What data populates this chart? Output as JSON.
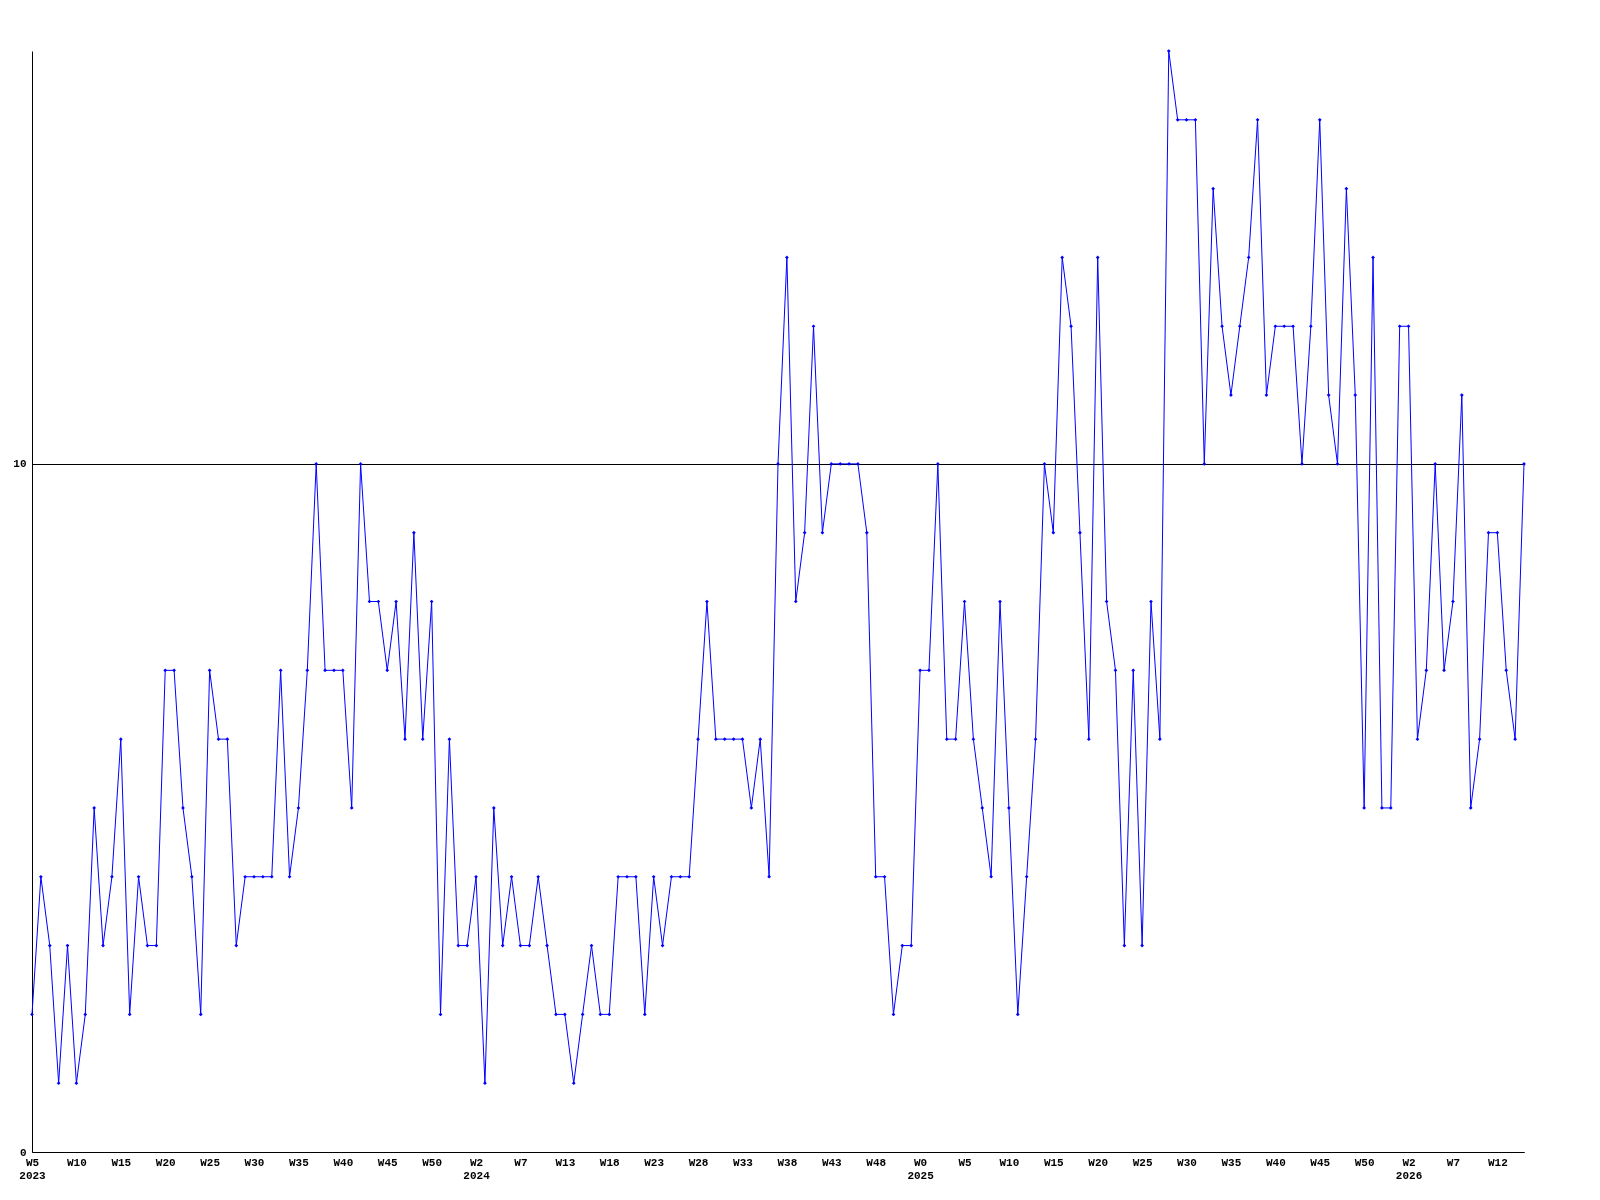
{
  "chart_data": {
    "type": "line",
    "categories": [
      "W5\n2023",
      null,
      null,
      null,
      null,
      "W10",
      null,
      null,
      null,
      null,
      "W15",
      null,
      null,
      null,
      null,
      "W20",
      null,
      null,
      null,
      null,
      "W25",
      null,
      null,
      null,
      null,
      "W30",
      null,
      null,
      null,
      null,
      "W35",
      null,
      null,
      null,
      null,
      "W40",
      null,
      null,
      null,
      null,
      "W45",
      null,
      null,
      null,
      null,
      "W50",
      null,
      null,
      null,
      null,
      "W2\n2024",
      null,
      null,
      null,
      null,
      "W7",
      null,
      null,
      null,
      null,
      "W13",
      null,
      null,
      null,
      null,
      "W18",
      null,
      null,
      null,
      null,
      "W23",
      null,
      null,
      null,
      null,
      "W28",
      null,
      null,
      null,
      null,
      "W33",
      null,
      null,
      null,
      null,
      "W38",
      null,
      null,
      null,
      null,
      "W43",
      null,
      null,
      null,
      null,
      "W48",
      null,
      null,
      null,
      null,
      "W0\n2025",
      null,
      null,
      null,
      null,
      "W5",
      null,
      null,
      null,
      null,
      "W10",
      null,
      null,
      null,
      null,
      "W15",
      null,
      null,
      null,
      null,
      "W20",
      null,
      null,
      null,
      null,
      "W25",
      null,
      null,
      null,
      null,
      "W30",
      null,
      null,
      null,
      null,
      "W35",
      null,
      null,
      null,
      null,
      "W40",
      null,
      null,
      null,
      null,
      "W45",
      null,
      null,
      null,
      null,
      "W50",
      null,
      null,
      null,
      null,
      "W2\n2026",
      null,
      null,
      null,
      null,
      "W7",
      null,
      null,
      null,
      null,
      "W12",
      null,
      null,
      null
    ],
    "series": [
      {
        "color": "#0000ff",
        "values": [
          2,
          4,
          3,
          1,
          3,
          1,
          2,
          5,
          3,
          4,
          6,
          2,
          4,
          3,
          3,
          7,
          7,
          5,
          4,
          2,
          7,
          6,
          6,
          3,
          4,
          4,
          4,
          4,
          7,
          4,
          5,
          7,
          10,
          7,
          7,
          7,
          5,
          10,
          8,
          8,
          7,
          8,
          6,
          9,
          6,
          8,
          2,
          6,
          3,
          3,
          4,
          1,
          5,
          3,
          4,
          3,
          3,
          4,
          3,
          2,
          2,
          1,
          2,
          3,
          2,
          2,
          4,
          4,
          4,
          2,
          4,
          3,
          4,
          4,
          4,
          6,
          8,
          6,
          6,
          6,
          6,
          5,
          6,
          4,
          10,
          13,
          8,
          9,
          12,
          9,
          10,
          10,
          10,
          10,
          9,
          4,
          4,
          2,
          3,
          3,
          7,
          7,
          10,
          6,
          6,
          8,
          6,
          5,
          4,
          8,
          5,
          2,
          4,
          6,
          10,
          9,
          13,
          12,
          9,
          6,
          13,
          8,
          7,
          3,
          7,
          3,
          8,
          6,
          16,
          15,
          15,
          15,
          10,
          14,
          12,
          11,
          12,
          13,
          15,
          11,
          12,
          12,
          12,
          10,
          12,
          15,
          11,
          10,
          14,
          11,
          5,
          13,
          5,
          5,
          12,
          12,
          6,
          7,
          10,
          7,
          8,
          11,
          5,
          6,
          9,
          9,
          7,
          6,
          10
        ]
      }
    ],
    "ylim": [
      0,
      16
    ],
    "yticks": [
      0,
      10
    ],
    "grid": "y",
    "marker": "diamond",
    "line_style": "solid",
    "legend": false
  }
}
